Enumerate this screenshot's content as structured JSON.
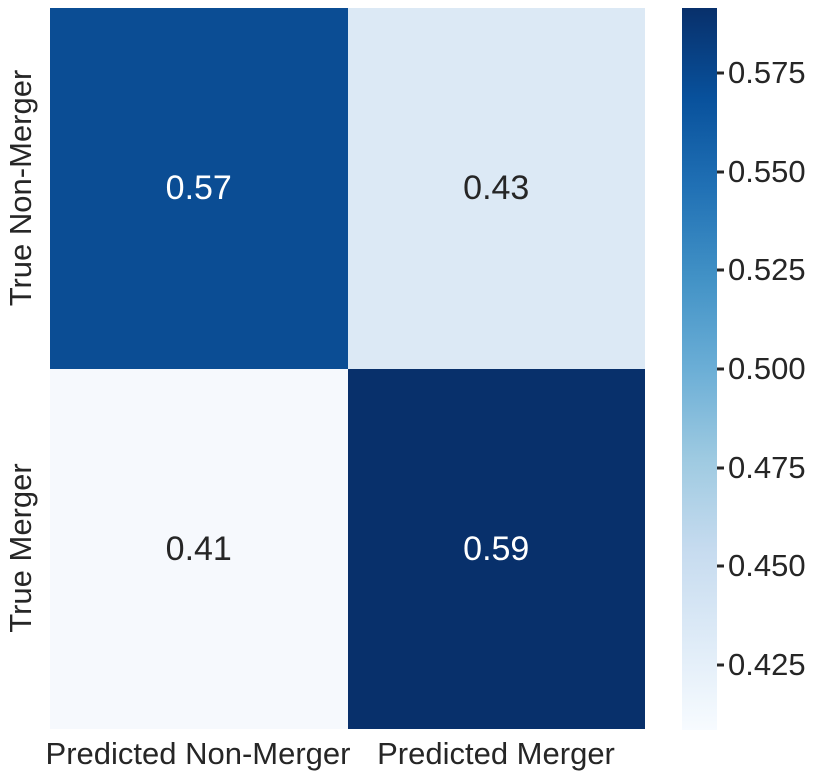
{
  "chart_data": {
    "type": "heatmap",
    "title": "",
    "rows": [
      "True Non-Merger",
      "True Merger"
    ],
    "columns": [
      "Predicted Non-Merger",
      "Predicted Merger"
    ],
    "values": [
      [
        0.57,
        0.43
      ],
      [
        0.41,
        0.59
      ]
    ],
    "cell_labels": [
      [
        "0.57",
        "0.43"
      ],
      [
        "0.41",
        "0.59"
      ]
    ],
    "vmin": 0.41,
    "vmax": 0.59,
    "colormap": "Blues",
    "grid": false,
    "cell_colors": [
      [
        "#0b4d94",
        "#dce9f5"
      ],
      [
        "#f6f9fd",
        "#08306b"
      ]
    ],
    "cell_text_colors": [
      [
        "#ffffff",
        "#262626"
      ],
      [
        "#262626",
        "#ffffff"
      ]
    ],
    "axis_text_color": "#262626",
    "colorbar": {
      "position": "right",
      "tick_labels": [
        "0.575",
        "0.550",
        "0.525",
        "0.500",
        "0.475",
        "0.450",
        "0.425"
      ],
      "tick_values": [
        0.575,
        0.55,
        0.525,
        0.5,
        0.475,
        0.45,
        0.425
      ],
      "first_tick_pct_from_top": 9.0,
      "last_tick_pct_from_top": 91.0,
      "gradient_stops_top_to_bottom": [
        "#08306b",
        "#08519c",
        "#2171b5",
        "#4292c6",
        "#6baed6",
        "#9ecae1",
        "#c6dbef",
        "#deebf7",
        "#f7fbff"
      ]
    }
  }
}
